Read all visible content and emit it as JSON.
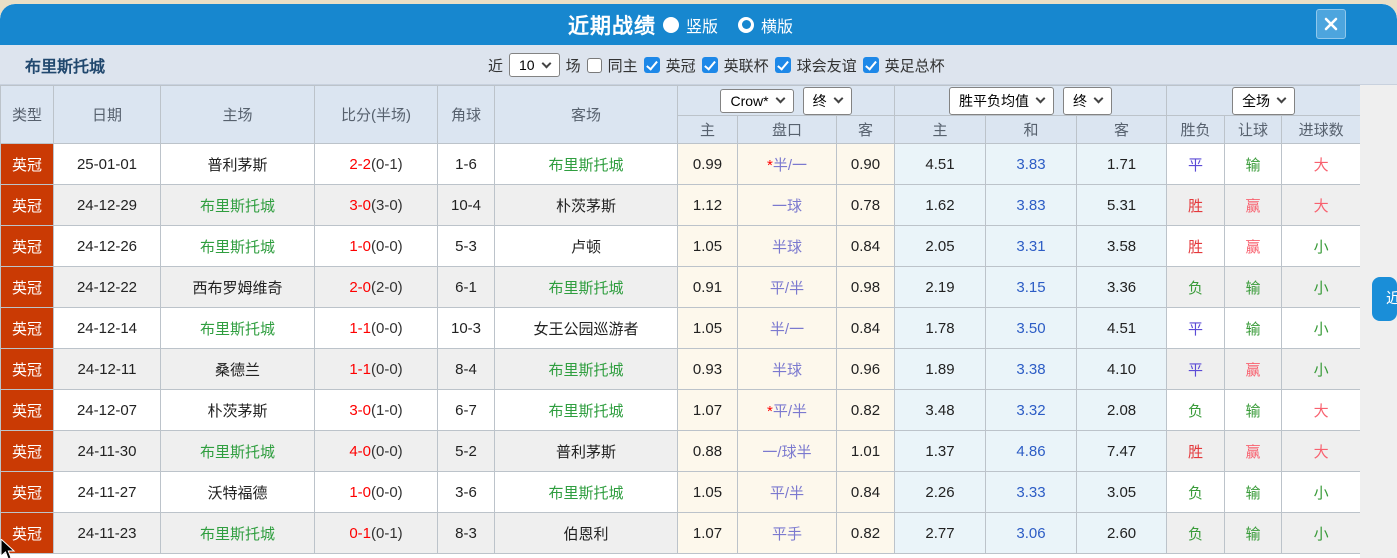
{
  "colors": {
    "titlebar_blue": "#1787cf",
    "close_button_blue": "#4da5de",
    "filterbar_bg": "#dde4ee",
    "header_bg": "#dbe5f1",
    "badge_red": "#ca3a04",
    "focus_team_green": "#2f9e3f",
    "score_red": "#fe0000",
    "handicap_line_purple": "#7b79cf",
    "draw_odds_blue": "#2c5cc5",
    "asian_odds_bg": "#fdf8ec",
    "euro_odds_bg": "#eaf4f9",
    "result_win_red": "#e4393c",
    "result_draw_violet": "#5b4bd6",
    "result_lose_green": "#399b39",
    "soft_red": "#f8616f"
  },
  "titlebar": {
    "title": "近期战绩",
    "radio_vertical_label": "竖版",
    "radio_horizontal_label": "横版",
    "selected_layout": "横版"
  },
  "filterbar": {
    "team": "布里斯托城",
    "recent_label": "近",
    "recent_count": "10",
    "unit_label": "场",
    "checkboxes": [
      {
        "label": "同主",
        "checked": false
      },
      {
        "label": "英冠",
        "checked": true
      },
      {
        "label": "英联杯",
        "checked": true
      },
      {
        "label": "球会友谊",
        "checked": true
      },
      {
        "label": "英足总杯",
        "checked": true
      }
    ]
  },
  "table": {
    "columns": [
      "类型",
      "日期",
      "主场",
      "比分(半场)",
      "角球",
      "客场"
    ],
    "subcolumns": [
      "主",
      "盘口",
      "客",
      "主",
      "和",
      "客",
      "胜负",
      "让球",
      "进球数"
    ],
    "selects": {
      "asia_company": "Crow*",
      "asia_time": "终",
      "europe_avg": "胜平负均值",
      "europe_time": "终",
      "scope": "全场"
    },
    "rows": [
      {
        "type": "英冠",
        "date": "25-01-01",
        "home": "普利茅斯",
        "home_focus": false,
        "score": "2-2",
        "half": "(0-1)",
        "corner": "1-6",
        "away": "布里斯托城",
        "away_focus": true,
        "ah_home": "0.99",
        "line_star": "*",
        "line": "半/一",
        "ah_away": "0.90",
        "eu_home": "4.51",
        "eu_draw": "3.83",
        "eu_away": "1.71",
        "result": "平",
        "result_color": "draw",
        "handicap": "输",
        "handicap_color": "green",
        "goals": "大",
        "goals_color": "red"
      },
      {
        "type": "英冠",
        "date": "24-12-29",
        "home": "布里斯托城",
        "home_focus": true,
        "score": "3-0",
        "half": "(3-0)",
        "corner": "10-4",
        "away": "朴茨茅斯",
        "away_focus": false,
        "ah_home": "1.12",
        "line_star": "",
        "line": "一球",
        "ah_away": "0.78",
        "eu_home": "1.62",
        "eu_draw": "3.83",
        "eu_away": "5.31",
        "result": "胜",
        "result_color": "red",
        "handicap": "赢",
        "handicap_color": "red",
        "goals": "大",
        "goals_color": "red"
      },
      {
        "type": "英冠",
        "date": "24-12-26",
        "home": "布里斯托城",
        "home_focus": true,
        "score": "1-0",
        "half": "(0-0)",
        "corner": "5-3",
        "away": "卢顿",
        "away_focus": false,
        "ah_home": "1.05",
        "line_star": "",
        "line": "半球",
        "ah_away": "0.84",
        "eu_home": "2.05",
        "eu_draw": "3.31",
        "eu_away": "3.58",
        "result": "胜",
        "result_color": "red",
        "handicap": "赢",
        "handicap_color": "red",
        "goals": "小",
        "goals_color": "green"
      },
      {
        "type": "英冠",
        "date": "24-12-22",
        "home": "西布罗姆维奇",
        "home_focus": false,
        "score": "2-0",
        "half": "(2-0)",
        "corner": "6-1",
        "away": "布里斯托城",
        "away_focus": true,
        "ah_home": "0.91",
        "line_star": "",
        "line": "平/半",
        "ah_away": "0.98",
        "eu_home": "2.19",
        "eu_draw": "3.15",
        "eu_away": "3.36",
        "result": "负",
        "result_color": "green",
        "handicap": "输",
        "handicap_color": "green",
        "goals": "小",
        "goals_color": "green"
      },
      {
        "type": "英冠",
        "date": "24-12-14",
        "home": "布里斯托城",
        "home_focus": true,
        "score": "1-1",
        "half": "(0-0)",
        "corner": "10-3",
        "away": "女王公园巡游者",
        "away_focus": false,
        "ah_home": "1.05",
        "line_star": "",
        "line": "半/一",
        "ah_away": "0.84",
        "eu_home": "1.78",
        "eu_draw": "3.50",
        "eu_away": "4.51",
        "result": "平",
        "result_color": "draw",
        "handicap": "输",
        "handicap_color": "green",
        "goals": "小",
        "goals_color": "green"
      },
      {
        "type": "英冠",
        "date": "24-12-11",
        "home": "桑德兰",
        "home_focus": false,
        "score": "1-1",
        "half": "(0-0)",
        "corner": "8-4",
        "away": "布里斯托城",
        "away_focus": true,
        "ah_home": "0.93",
        "line_star": "",
        "line": "半球",
        "ah_away": "0.96",
        "eu_home": "1.89",
        "eu_draw": "3.38",
        "eu_away": "4.10",
        "result": "平",
        "result_color": "draw",
        "handicap": "赢",
        "handicap_color": "red",
        "goals": "小",
        "goals_color": "green"
      },
      {
        "type": "英冠",
        "date": "24-12-07",
        "home": "朴茨茅斯",
        "home_focus": false,
        "score": "3-0",
        "half": "(1-0)",
        "corner": "6-7",
        "away": "布里斯托城",
        "away_focus": true,
        "ah_home": "1.07",
        "line_star": "*",
        "line": "平/半",
        "ah_away": "0.82",
        "eu_home": "3.48",
        "eu_draw": "3.32",
        "eu_away": "2.08",
        "result": "负",
        "result_color": "green",
        "handicap": "输",
        "handicap_color": "green",
        "goals": "大",
        "goals_color": "red"
      },
      {
        "type": "英冠",
        "date": "24-11-30",
        "home": "布里斯托城",
        "home_focus": true,
        "score": "4-0",
        "half": "(0-0)",
        "corner": "5-2",
        "away": "普利茅斯",
        "away_focus": false,
        "ah_home": "0.88",
        "line_star": "",
        "line": "一/球半",
        "ah_away": "1.01",
        "eu_home": "1.37",
        "eu_draw": "4.86",
        "eu_away": "7.47",
        "result": "胜",
        "result_color": "red",
        "handicap": "赢",
        "handicap_color": "red",
        "goals": "大",
        "goals_color": "red"
      },
      {
        "type": "英冠",
        "date": "24-11-27",
        "home": "沃特福德",
        "home_focus": false,
        "score": "1-0",
        "half": "(0-0)",
        "corner": "3-6",
        "away": "布里斯托城",
        "away_focus": true,
        "ah_home": "1.05",
        "line_star": "",
        "line": "平/半",
        "ah_away": "0.84",
        "eu_home": "2.26",
        "eu_draw": "3.33",
        "eu_away": "3.05",
        "result": "负",
        "result_color": "green",
        "handicap": "输",
        "handicap_color": "green",
        "goals": "小",
        "goals_color": "green"
      },
      {
        "type": "英冠",
        "date": "24-11-23",
        "home": "布里斯托城",
        "home_focus": true,
        "score": "0-1",
        "half": "(0-1)",
        "corner": "8-3",
        "away": "伯恩利",
        "away_focus": false,
        "ah_home": "1.07",
        "line_star": "",
        "line": "平手",
        "ah_away": "0.82",
        "eu_home": "2.77",
        "eu_draw": "3.06",
        "eu_away": "2.60",
        "result": "负",
        "result_color": "green",
        "handicap": "输",
        "handicap_color": "green",
        "goals": "小",
        "goals_color": "green"
      }
    ]
  },
  "side_tab_label": "近"
}
